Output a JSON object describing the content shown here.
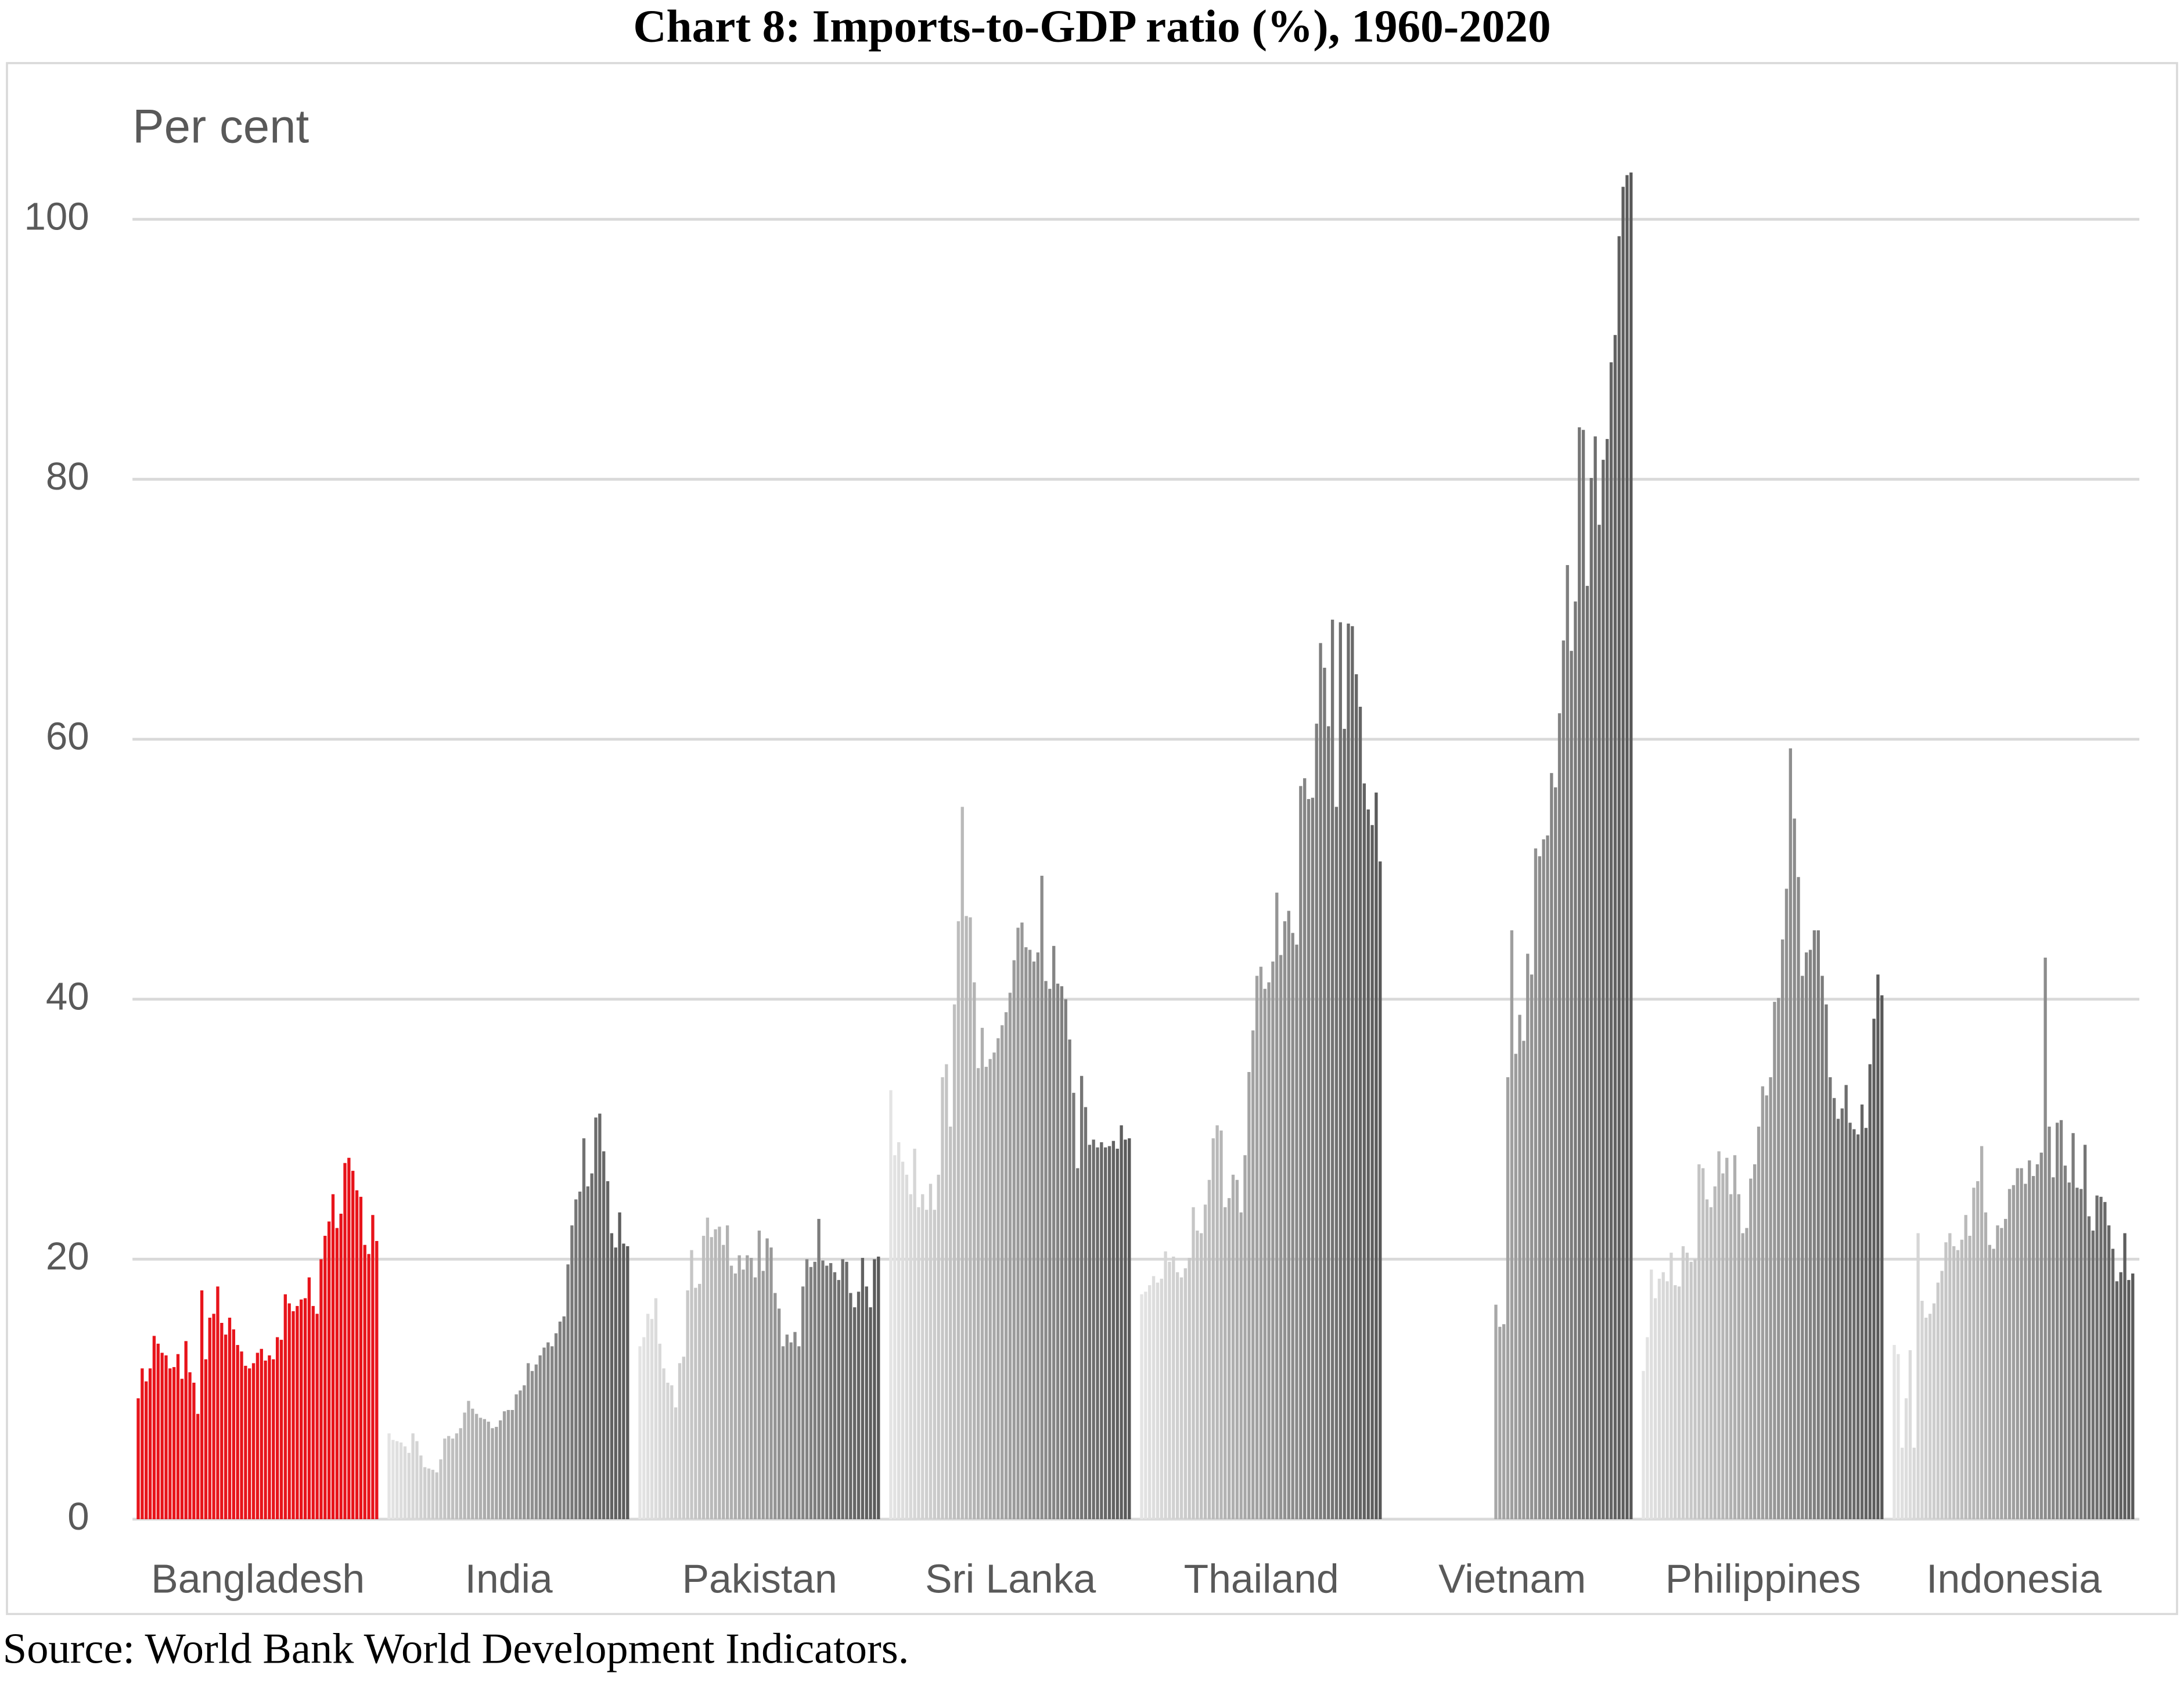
{
  "chart_data": {
    "type": "bar",
    "title": "Chart 8: Imports-to-GDP ratio (%), 1960-2020",
    "y_label": "Per cent",
    "source": "Source: World Bank World Development Indicators.",
    "categories": [
      "Bangladesh",
      "India",
      "Pakistan",
      "Sri Lanka",
      "Thailand",
      "Vietnam",
      "Philippines",
      "Indonesia"
    ],
    "colors": [
      [
        "#e8141b",
        "#e8141b"
      ],
      [
        "#e4e4e4",
        "#595959"
      ],
      [
        "#e4e4e4",
        "#595959"
      ],
      [
        "#e4e4e4",
        "#595959"
      ],
      [
        "#e4e4e4",
        "#595959"
      ],
      [
        "#e4e4e4",
        "#595959"
      ],
      [
        "#e4e4e4",
        "#595959"
      ],
      [
        "#e4e4e4",
        "#595959"
      ]
    ],
    "values": [
      [
        9.3,
        11.6,
        10.6,
        11.6,
        14.1,
        13.5,
        12.8,
        12.6,
        11.6,
        11.7,
        12.7,
        10.8,
        13.7,
        11.3,
        10.5,
        8.1,
        17.6,
        12.3,
        15.5,
        15.8,
        17.9,
        15.1,
        14.2,
        15.5,
        14.6,
        13.4,
        12.9,
        11.8,
        11.6,
        12.0,
        12.8,
        13.1,
        12.2,
        12.6,
        12.3,
        14.0,
        13.8,
        17.3,
        16.6,
        16.0,
        16.4,
        16.9,
        17.0,
        18.6,
        16.4,
        15.8,
        20.0,
        21.8,
        22.9,
        25.0,
        22.4,
        23.5,
        27.4,
        27.8,
        26.8,
        25.3,
        24.8,
        21.1,
        20.4,
        23.4,
        21.4
      ],
      [
        6.6,
        6.1,
        6.0,
        5.9,
        5.6,
        5.1,
        6.6,
        6.0,
        4.9,
        4.0,
        3.9,
        3.8,
        3.6,
        4.6,
        6.2,
        6.4,
        6.2,
        6.6,
        7.0,
        8.2,
        9.1,
        8.5,
        8.1,
        7.8,
        7.7,
        7.5,
        7.0,
        7.1,
        7.6,
        8.3,
        8.4,
        8.4,
        9.6,
        9.9,
        10.3,
        12.0,
        11.4,
        11.9,
        12.6,
        13.2,
        13.6,
        13.3,
        14.3,
        15.2,
        15.6,
        19.6,
        22.6,
        24.6,
        25.2,
        29.3,
        25.6,
        26.6,
        30.9,
        31.2,
        28.3,
        26.0,
        22.0,
        20.9,
        23.6,
        21.2,
        21.0
      ],
      [
        13.3,
        14.0,
        15.8,
        15.4,
        17.0,
        13.5,
        11.6,
        10.5,
        10.3,
        8.6,
        12.0,
        12.5,
        17.6,
        20.7,
        17.8,
        18.1,
        21.8,
        23.2,
        21.7,
        22.3,
        22.5,
        21.1,
        22.6,
        19.5,
        18.9,
        20.3,
        19.2,
        20.3,
        20.1,
        18.6,
        22.2,
        19.1,
        21.6,
        20.9,
        17.4,
        16.2,
        13.3,
        14.2,
        13.6,
        14.4,
        13.3,
        17.9,
        20.0,
        19.4,
        19.8,
        23.1,
        19.9,
        19.5,
        19.7,
        19.0,
        18.4,
        20.0,
        19.8,
        17.4,
        16.3,
        17.5,
        20.1,
        17.9,
        16.3,
        20.0,
        20.2
      ],
      [
        33.0,
        28.0,
        29.0,
        27.5,
        26.5,
        25.0,
        28.5,
        24.0,
        25.0,
        23.8,
        25.8,
        23.8,
        26.5,
        34.0,
        35.0,
        30.2,
        39.6,
        46.0,
        54.8,
        46.4,
        46.3,
        41.3,
        34.7,
        37.8,
        34.8,
        35.4,
        35.9,
        37.0,
        38.0,
        39.0,
        40.5,
        43.0,
        45.5,
        45.9,
        44.0,
        43.8,
        42.9,
        43.6,
        49.5,
        41.4,
        40.8,
        44.1,
        41.2,
        41.0,
        40.0,
        36.9,
        32.8,
        27.0,
        34.1,
        31.7,
        28.8,
        29.2,
        28.6,
        29.0,
        28.6,
        28.7,
        29.1,
        28.5,
        30.3,
        29.2,
        29.3
      ],
      [
        17.3,
        17.5,
        18.0,
        18.7,
        18.2,
        18.5,
        20.6,
        19.8,
        20.2,
        19.0,
        18.6,
        19.3,
        20.1,
        24.0,
        22.2,
        22.0,
        24.2,
        26.1,
        29.3,
        30.3,
        29.9,
        24.0,
        24.7,
        26.5,
        26.1,
        23.6,
        28.0,
        34.4,
        37.6,
        41.8,
        42.5,
        40.8,
        41.3,
        42.9,
        48.2,
        43.4,
        46.0,
        46.8,
        45.1,
        44.2,
        56.4,
        57.0,
        55.4,
        55.5,
        61.2,
        67.4,
        65.5,
        61.0,
        69.2,
        54.8,
        69.0,
        60.8,
        68.9,
        68.7,
        65.0,
        62.5,
        56.6,
        54.6,
        53.4,
        55.9,
        50.6
      ],
      [
        null,
        null,
        null,
        null,
        null,
        null,
        null,
        null,
        null,
        null,
        null,
        null,
        null,
        null,
        null,
        null,
        null,
        null,
        null,
        null,
        null,
        null,
        null,
        null,
        null,
        null,
        16.5,
        14.8,
        15.0,
        34.0,
        45.3,
        35.8,
        38.8,
        36.8,
        43.5,
        41.9,
        51.6,
        51.0,
        52.3,
        52.6,
        57.4,
        56.3,
        62.0,
        67.6,
        73.4,
        66.8,
        70.6,
        84.0,
        83.8,
        71.8,
        80.1,
        83.3,
        76.5,
        81.5,
        83.1,
        89.0,
        91.1,
        98.7,
        102.5,
        103.4,
        103.6
      ],
      [
        11.4,
        14.0,
        19.2,
        17.0,
        18.5,
        19.0,
        18.3,
        20.5,
        18.0,
        17.9,
        21.0,
        20.5,
        19.8,
        20.0,
        27.3,
        27.0,
        24.6,
        24.0,
        25.6,
        28.3,
        26.6,
        27.8,
        25.0,
        28.0,
        25.0,
        22.0,
        22.4,
        26.2,
        27.3,
        30.2,
        33.3,
        32.6,
        34.0,
        39.8,
        40.1,
        44.6,
        48.5,
        59.3,
        53.9,
        49.4,
        41.8,
        43.6,
        43.8,
        45.3,
        45.3,
        41.8,
        39.6,
        34.0,
        32.4,
        30.8,
        31.6,
        33.4,
        30.5,
        30.0,
        29.6,
        31.9,
        30.1,
        35.0,
        38.5,
        41.9,
        40.3
      ],
      [
        13.4,
        12.7,
        5.5,
        9.3,
        13.0,
        5.5,
        22.0,
        16.8,
        15.5,
        15.8,
        16.6,
        18.2,
        19.1,
        21.3,
        22.0,
        21.0,
        20.7,
        21.5,
        23.4,
        21.8,
        25.5,
        26.0,
        28.7,
        23.6,
        21.1,
        20.8,
        22.6,
        22.4,
        23.1,
        25.4,
        25.7,
        27.0,
        27.0,
        25.8,
        27.6,
        26.4,
        27.3,
        28.2,
        43.2,
        30.2,
        26.3,
        30.5,
        30.7,
        27.2,
        25.9,
        29.7,
        25.5,
        25.4,
        28.8,
        23.3,
        22.2,
        24.9,
        24.8,
        24.4,
        22.6,
        20.8,
        18.3,
        19.0,
        22.0,
        18.4,
        18.9
      ]
    ],
    "ylim": [
      0,
      110
    ],
    "yticks": [
      0,
      20,
      40,
      60,
      80,
      100
    ],
    "grid": true
  }
}
